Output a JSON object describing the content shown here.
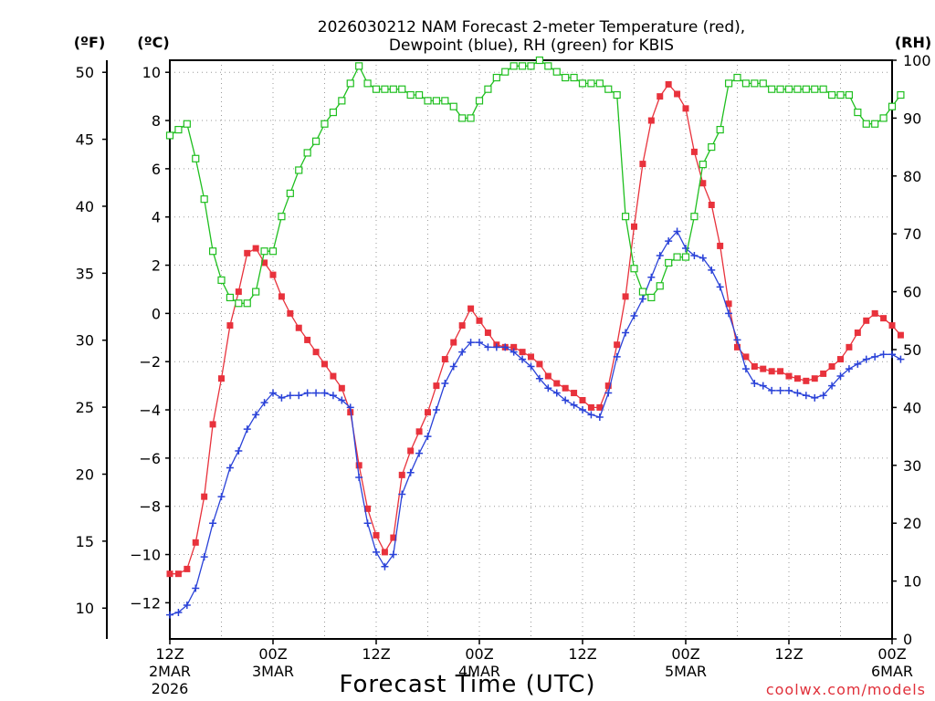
{
  "chart_data": {
    "type": "line",
    "title": "2026030212 NAM Forecast 2-meter Temperature (red),",
    "subtitle": "Dewpoint (blue), RH (green) for KBIS",
    "xlabel": "Forecast Time (UTC)",
    "credit": "coolwx.com/models",
    "unit_labels": {
      "fahrenheit": "(ºF)",
      "celsius": "(ºC)",
      "rh": "(RH)"
    },
    "xlim": [
      0,
      84
    ],
    "ylim_c": [
      -13.5,
      10.5
    ],
    "ylim_rh": [
      0,
      100
    ],
    "x_ticks": [
      {
        "x": 0,
        "line1": "12Z",
        "line2": "2MAR",
        "line3": "2026"
      },
      {
        "x": 12,
        "line1": "00Z",
        "line2": "3MAR",
        "line3": ""
      },
      {
        "x": 24,
        "line1": "12Z",
        "line2": "",
        "line3": ""
      },
      {
        "x": 36,
        "line1": "00Z",
        "line2": "4MAR",
        "line3": ""
      },
      {
        "x": 48,
        "line1": "12Z",
        "line2": "",
        "line3": ""
      },
      {
        "x": 60,
        "line1": "00Z",
        "line2": "5MAR",
        "line3": ""
      },
      {
        "x": 72,
        "line1": "12Z",
        "line2": "",
        "line3": ""
      },
      {
        "x": 84,
        "line1": "00Z",
        "line2": "6MAR",
        "line3": ""
      }
    ],
    "y_ticks_c": [
      -12,
      -10,
      -8,
      -6,
      -4,
      -2,
      0,
      2,
      4,
      6,
      8,
      10
    ],
    "y_ticks_f": [
      10,
      15,
      20,
      25,
      30,
      35,
      40,
      45,
      50
    ],
    "y_ticks_rh": [
      0,
      10,
      20,
      30,
      40,
      50,
      60,
      70,
      80,
      90,
      100
    ],
    "series": [
      {
        "name": "Temperature",
        "unit": "C",
        "color": "#e8323c",
        "marker": "filled-square",
        "values": [
          -10.8,
          -10.8,
          -10.6,
          -9.5,
          -7.6,
          -4.6,
          -2.7,
          -0.5,
          0.9,
          2.5,
          2.7,
          2.1,
          1.6,
          0.7,
          0,
          -0.6,
          -1.1,
          -1.6,
          -2.1,
          -2.6,
          -3.1,
          -4.1,
          -6.3,
          -8.1,
          -9.2,
          -9.9,
          -9.3,
          -6.7,
          -5.7,
          -4.9,
          -4.1,
          -3,
          -1.9,
          -1.2,
          -0.5,
          0.2,
          -0.3,
          -0.8,
          -1.3,
          -1.4,
          -1.4,
          -1.6,
          -1.8,
          -2.1,
          -2.6,
          -2.9,
          -3.1,
          -3.3,
          -3.6,
          -3.9,
          -3.9,
          -3,
          -1.3,
          0.7,
          3.6,
          6.2,
          8,
          9,
          9.5,
          9.1,
          8.5,
          6.7,
          5.4,
          4.5,
          2.8,
          0.4,
          -1.4,
          -1.8,
          -2.2,
          -2.3,
          -2.4,
          -2.4,
          -2.6,
          -2.7,
          -2.8,
          -2.7,
          -2.5,
          -2.2,
          -1.9,
          -1.4,
          -0.8,
          -0.3,
          0,
          -0.2,
          -0.5,
          -0.9
        ]
      },
      {
        "name": "Dewpoint",
        "unit": "C",
        "color": "#2a42d8",
        "marker": "plus",
        "values": [
          -12.5,
          -12.4,
          -12.1,
          -11.4,
          -10.1,
          -8.7,
          -7.6,
          -6.4,
          -5.7,
          -4.8,
          -4.2,
          -3.7,
          -3.3,
          -3.5,
          -3.4,
          -3.4,
          -3.3,
          -3.3,
          -3.3,
          -3.4,
          -3.6,
          -3.9,
          -6.8,
          -8.7,
          -9.9,
          -10.5,
          -10,
          -7.5,
          -6.6,
          -5.8,
          -5.1,
          -4,
          -2.9,
          -2.2,
          -1.6,
          -1.2,
          -1.2,
          -1.4,
          -1.4,
          -1.4,
          -1.6,
          -1.9,
          -2.2,
          -2.7,
          -3.1,
          -3.3,
          -3.6,
          -3.8,
          -4,
          -4.2,
          -4.3,
          -3.3,
          -1.8,
          -0.8,
          -0.1,
          0.6,
          1.5,
          2.4,
          3,
          3.4,
          2.7,
          2.4,
          2.3,
          1.8,
          1.1,
          0,
          -1.1,
          -2.3,
          -2.9,
          -3,
          -3.2,
          -3.2,
          -3.2,
          -3.3,
          -3.4,
          -3.5,
          -3.4,
          -3,
          -2.6,
          -2.3,
          -2.1,
          -1.9,
          -1.8,
          -1.7,
          -1.7,
          -1.9
        ]
      },
      {
        "name": "RH",
        "unit": "%",
        "color": "#1fbf1f",
        "marker": "open-square",
        "values": [
          87,
          88,
          89,
          83,
          76,
          67,
          62,
          59,
          58,
          58,
          60,
          67,
          67,
          73,
          77,
          81,
          84,
          86,
          89,
          91,
          93,
          96,
          99,
          96,
          95,
          95,
          95,
          95,
          94,
          94,
          93,
          93,
          93,
          92,
          90,
          90,
          93,
          95,
          97,
          98,
          99,
          99,
          99,
          100,
          99,
          98,
          97,
          97,
          96,
          96,
          96,
          95,
          94,
          73,
          64,
          60,
          59,
          61,
          65,
          66,
          66,
          73,
          82,
          85,
          88,
          96,
          97,
          96,
          96,
          96,
          95,
          95,
          95,
          95,
          95,
          95,
          95,
          94,
          94,
          94,
          91,
          89,
          89,
          90,
          92,
          94
        ]
      }
    ]
  }
}
